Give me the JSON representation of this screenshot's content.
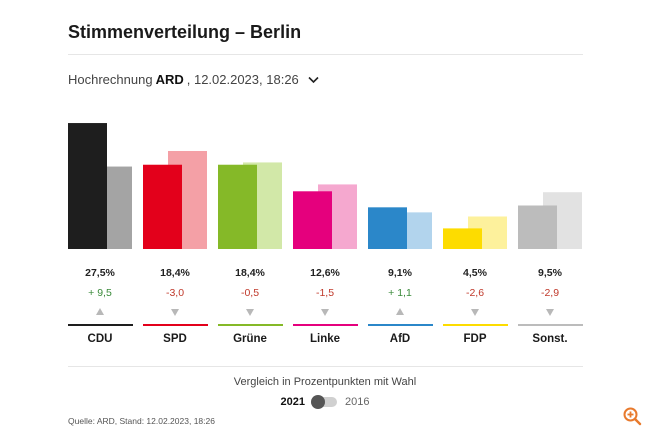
{
  "header": {
    "title": "Stimmenverteilung – Berlin"
  },
  "projection": {
    "prefix": "Hochrechnung",
    "source": "ARD",
    "datetime": ", 12.02.2023, 18:26"
  },
  "chart_data": {
    "type": "bar",
    "categories": [
      "CDU",
      "SPD",
      "Grüne",
      "Linke",
      "AfD",
      "FDP",
      "Sonst."
    ],
    "series": [
      {
        "name": "2021",
        "values": [
          27.5,
          18.4,
          18.4,
          12.6,
          9.1,
          4.5,
          9.5
        ]
      },
      {
        "name": "2016",
        "values": [
          18.0,
          21.4,
          18.9,
          14.1,
          8.0,
          7.1,
          12.4
        ]
      }
    ],
    "value_labels": [
      "27,5%",
      "18,4%",
      "18,4%",
      "12,6%",
      "9,1%",
      "4,5%",
      "9,5%"
    ],
    "diff_labels": [
      "+ 9,5",
      "-3,0",
      "-0,5",
      "-1,5",
      "+ 1,1",
      "-2,6",
      "-2,9"
    ],
    "diff_direction": [
      "up",
      "down",
      "down",
      "down",
      "up",
      "down",
      "down"
    ],
    "colors_current": [
      "#1e1e1e",
      "#e3001b",
      "#85b928",
      "#e5007d",
      "#2b87c9",
      "#fddc00",
      "#bcbcbc"
    ],
    "colors_previous": [
      "#a4a4a4",
      "#f4a0a6",
      "#d2e8a8",
      "#f5a8cf",
      "#b2d4ed",
      "#fdf19c",
      "#e2e2e2"
    ],
    "positive_color": "#3a8a3a",
    "negative_color": "#c0392b",
    "arrow_color": "#b8b8b8"
  },
  "comparison": {
    "label": "Vergleich in Prozentpunkten mit Wahl",
    "year_active": "2021",
    "year_inactive": "2016"
  },
  "source_note": "Quelle: ARD, Stand: 12.02.2023, 18:26"
}
